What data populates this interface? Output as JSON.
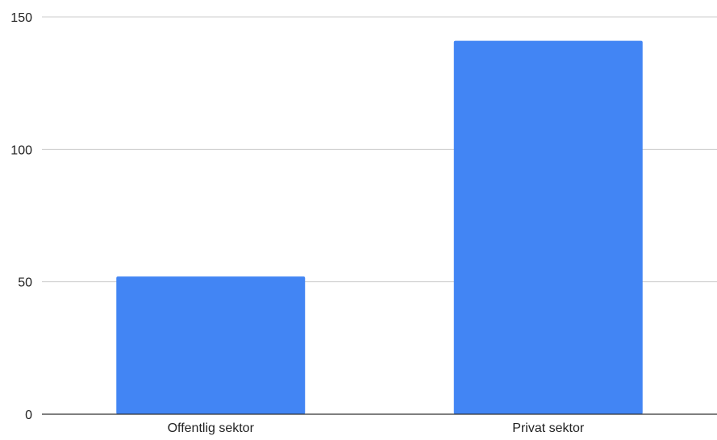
{
  "chart_data": {
    "type": "bar",
    "categories": [
      "Offentlig sektor",
      "Privat sektor"
    ],
    "values": [
      52,
      141
    ],
    "title": "",
    "xlabel": "",
    "ylabel": "",
    "ylim": [
      0,
      150
    ],
    "yticks": [
      0,
      50,
      100,
      150
    ],
    "grid": true,
    "legend": "none",
    "bar_color": "#4285F4",
    "grid_color": "#CCCCCC",
    "axis_color": "#333333"
  }
}
